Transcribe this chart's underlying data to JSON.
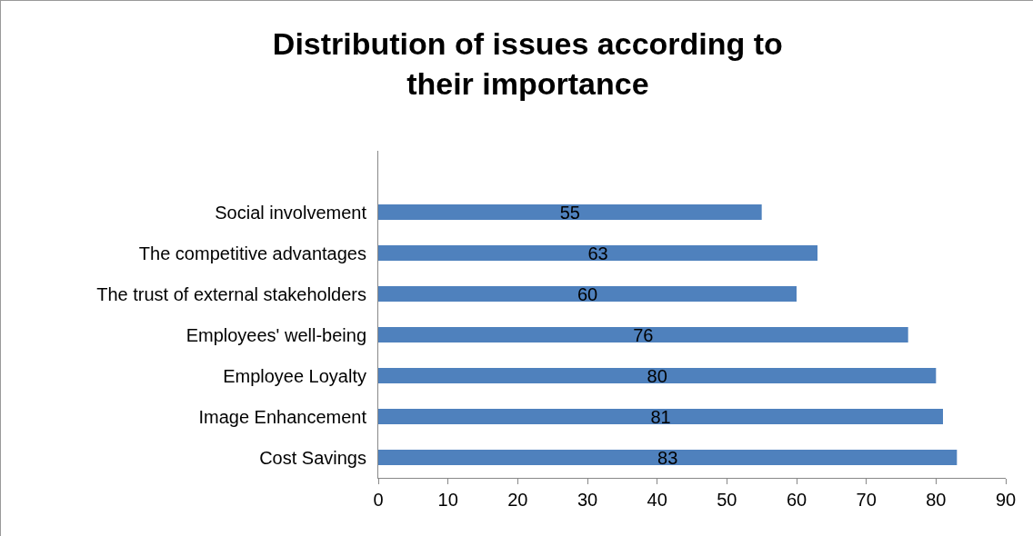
{
  "chart_data": {
    "type": "bar",
    "orientation": "horizontal",
    "title": "Distribution of issues according to their importance",
    "categories": [
      null,
      "Social involvement",
      "The competitive advantages",
      "The trust of external stakeholders",
      "Employees' well-being",
      "Employee Loyalty",
      "Image Enhancement",
      "Cost Savings"
    ],
    "values": [
      null,
      55,
      63,
      60,
      76,
      80,
      81,
      83
    ],
    "color": "#4f81bd",
    "xlim": [
      0,
      90
    ],
    "xticks": [
      0,
      10,
      20,
      30,
      40,
      50,
      60,
      70,
      80,
      90
    ],
    "grid": false,
    "legend": false,
    "data_labels": true
  }
}
